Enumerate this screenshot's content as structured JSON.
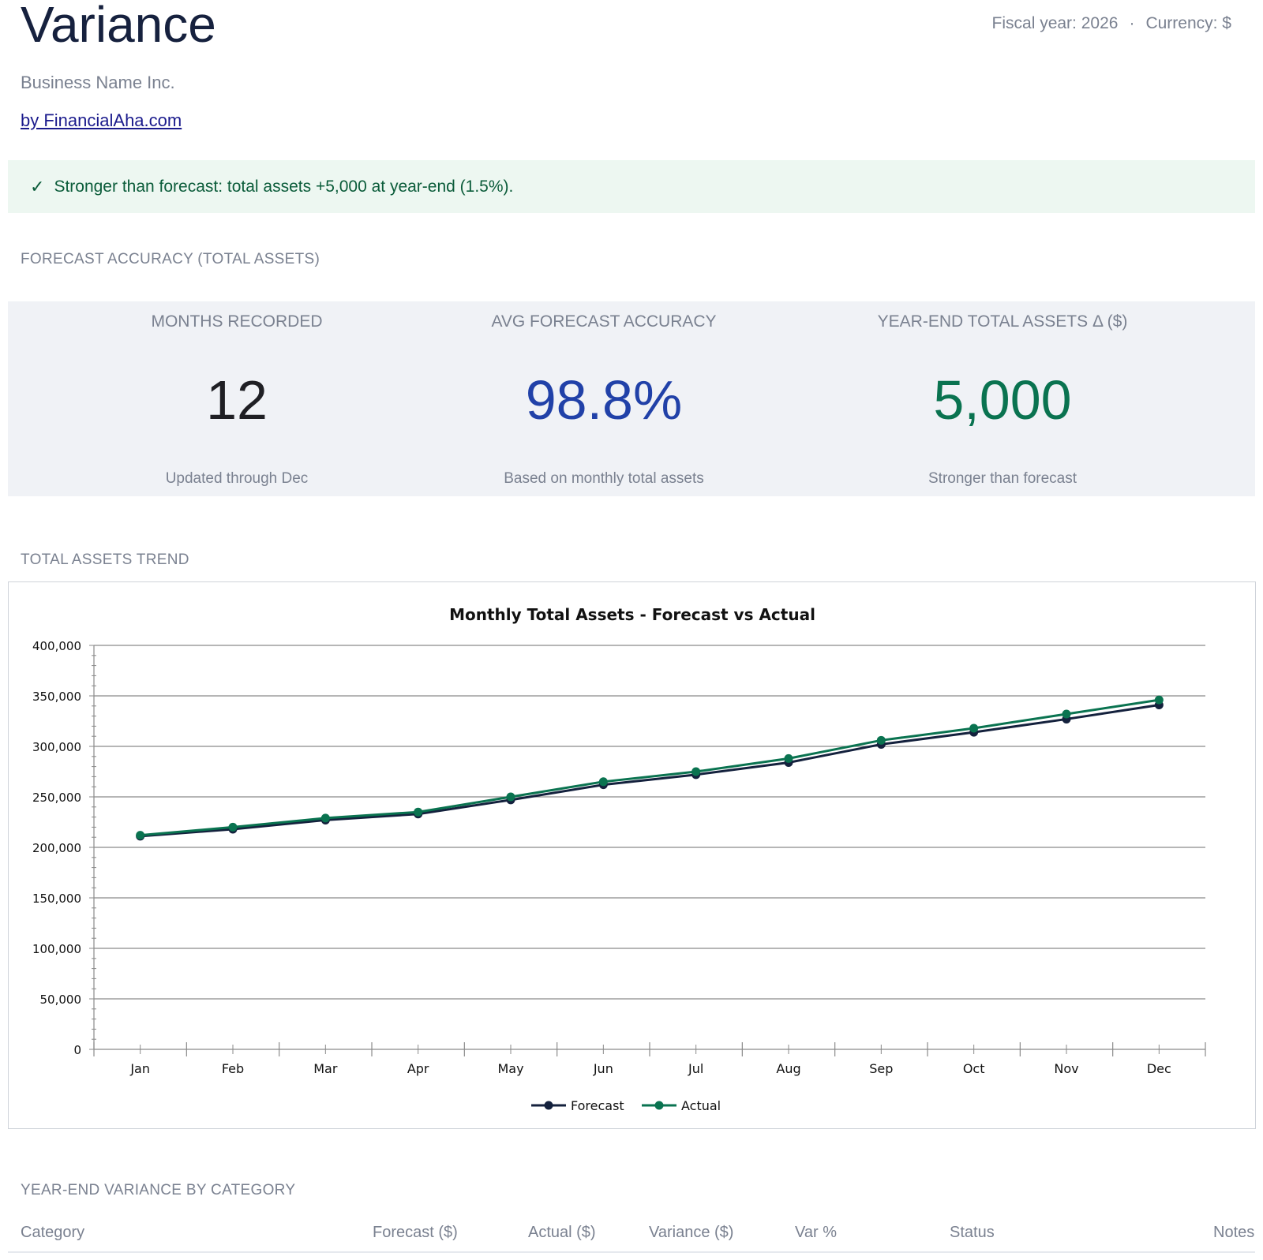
{
  "header": {
    "title": "Variance",
    "fiscal_year": "Fiscal year: 2026",
    "separator": "·",
    "currency": "Currency: $",
    "company": "Business Name Inc.",
    "byline": "by FinancialAha.com"
  },
  "banner": {
    "icon": "check-icon",
    "text": "Stronger than forecast: total assets +5,000 at year-end (1.5%)."
  },
  "sections": {
    "accuracy": "FORECAST ACCURACY (TOTAL ASSETS)",
    "trend": "TOTAL ASSETS TREND",
    "category": "YEAR-END VARIANCE BY CATEGORY"
  },
  "kpis": [
    {
      "label": "MONTHS RECORDED",
      "value": "12",
      "sub": "Updated through Dec",
      "color": "#1f1f24"
    },
    {
      "label": "AVG FORECAST ACCURACY",
      "value": "98.8%",
      "sub": "Based on monthly total assets",
      "color": "#2141a8"
    },
    {
      "label": "YEAR-END TOTAL ASSETS Δ ($)",
      "value": "5,000",
      "sub": "Stronger than forecast",
      "color": "#0a7350"
    }
  ],
  "chart_data": {
    "type": "line",
    "title": "Monthly Total Assets - Forecast vs Actual",
    "categories": [
      "Jan",
      "Feb",
      "Mar",
      "Apr",
      "May",
      "Jun",
      "Jul",
      "Aug",
      "Sep",
      "Oct",
      "Nov",
      "Dec"
    ],
    "series": [
      {
        "name": "Forecast",
        "color": "#14213d",
        "values": [
          211000,
          218000,
          227000,
          233000,
          247000,
          262000,
          272000,
          284000,
          302000,
          314000,
          327000,
          341000
        ]
      },
      {
        "name": "Actual",
        "color": "#0a7350",
        "values": [
          212000,
          220000,
          229000,
          235000,
          250000,
          265000,
          275000,
          288000,
          306000,
          318000,
          332000,
          346000
        ]
      }
    ],
    "ylim": [
      0,
      400000
    ],
    "yticks": [
      "0",
      "50,000",
      "100,000",
      "150,000",
      "200,000",
      "250,000",
      "300,000",
      "350,000",
      "400,000"
    ],
    "grid": true,
    "legend": "bottom-center"
  },
  "table": {
    "columns": [
      "Category",
      "Forecast ($)",
      "Actual ($)",
      "Variance ($)",
      "Var %",
      "Status",
      "Notes"
    ]
  }
}
